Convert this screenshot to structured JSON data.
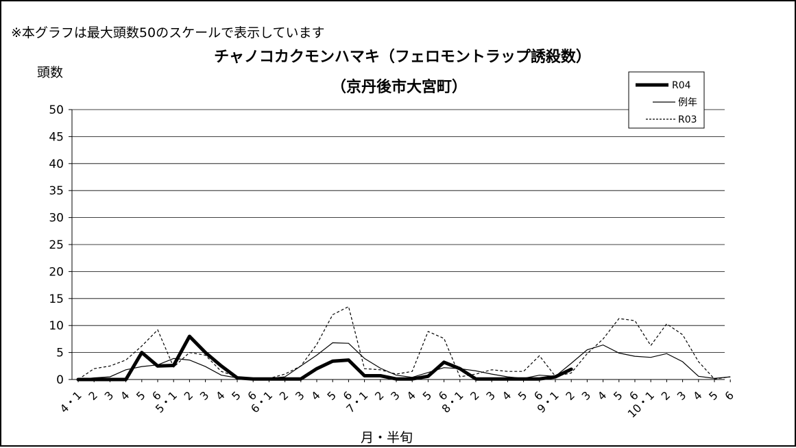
{
  "note": "※本グラフは最大頭数50のスケールで表示しています",
  "chart_data": {
    "type": "line",
    "title_line1": "チャノコカクモンハマキ（フェロモントラップ誘殺数）",
    "title_line2": "（京丹後市大宮町）",
    "ylabel": "頭数",
    "xlabel": "月・半旬",
    "ylim": [
      0,
      50
    ],
    "yticks": [
      0,
      5,
      10,
      15,
      20,
      25,
      30,
      35,
      40,
      45,
      50
    ],
    "grid": true,
    "legend_position": "top-right",
    "categories": [
      "4・1",
      "2",
      "3",
      "4",
      "5",
      "6",
      "5・1",
      "2",
      "3",
      "4",
      "5",
      "6",
      "6・1",
      "2",
      "3",
      "4",
      "5",
      "6",
      "7・1",
      "2",
      "3",
      "4",
      "5",
      "6",
      "8・1",
      "2",
      "3",
      "4",
      "5",
      "6",
      "9・1",
      "2",
      "3",
      "4",
      "5",
      "6",
      "10・1",
      "2",
      "3",
      "4",
      "5",
      "6"
    ],
    "series": [
      {
        "name": "R04",
        "style": "bold",
        "values": [
          0,
          0,
          0,
          0,
          5.0,
          2.5,
          2.6,
          8.0,
          5.0,
          2.5,
          0.3,
          0.1,
          0.1,
          0.1,
          0.1,
          2.0,
          3.4,
          3.6,
          0.7,
          0.7,
          0.1,
          0.1,
          0.6,
          3.2,
          2.0,
          0.1,
          0.1,
          0.1,
          0.1,
          0.1,
          0.5,
          1.9,
          null,
          null,
          null,
          null,
          null,
          null,
          null,
          null,
          null,
          null
        ]
      },
      {
        "name": "例年",
        "style": "thin",
        "values": [
          0,
          0.3,
          0.5,
          1.8,
          2.4,
          2.7,
          3.9,
          3.6,
          2.4,
          0.8,
          0.3,
          0.2,
          0.2,
          0.5,
          2.5,
          4.5,
          6.8,
          6.7,
          3.9,
          2.1,
          0.8,
          0.4,
          1.3,
          2.2,
          2.0,
          1.6,
          1.0,
          0.5,
          0.2,
          0.8,
          0.6,
          3.0,
          5.5,
          6.4,
          4.9,
          4.3,
          4.1,
          4.8,
          3.3,
          0.6,
          0.2,
          0.5
        ]
      },
      {
        "name": "R03",
        "style": "dashed",
        "values": [
          0,
          2.0,
          2.5,
          3.6,
          6.2,
          9.2,
          2.3,
          5.0,
          4.5,
          1.5,
          0.5,
          0.3,
          0.2,
          1.0,
          2.5,
          6.5,
          12.0,
          13.5,
          2.0,
          1.8,
          1.0,
          1.5,
          8.9,
          7.6,
          0.5,
          1.0,
          1.8,
          1.5,
          1.5,
          4.4,
          0.6,
          1.2,
          4.8,
          7.5,
          11.3,
          10.9,
          6.3,
          10.3,
          8.3,
          3.3,
          0.1,
          0.5
        ]
      }
    ]
  }
}
